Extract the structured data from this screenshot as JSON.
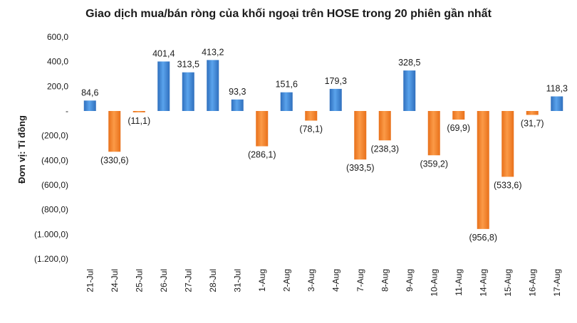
{
  "chart_data": {
    "type": "bar",
    "title": "Giao dịch mua/bán ròng của khối ngoại trên HOSE trong 20 phiên gần nhất",
    "ylabel": "Đơn vị: Tỉ đồng",
    "xlabel": "",
    "categories": [
      "21-Jul",
      "24-Jul",
      "25-Jul",
      "26-Jul",
      "27-Jul",
      "28-Jul",
      "31-Jul",
      "1-Aug",
      "2-Aug",
      "3-Aug",
      "4-Aug",
      "7-Aug",
      "8-Aug",
      "9-Aug",
      "10-Aug",
      "11-Aug",
      "14-Aug",
      "15-Aug",
      "16-Aug",
      "17-Aug"
    ],
    "values": [
      84.6,
      -330.6,
      -11.1,
      401.4,
      313.5,
      413.2,
      93.3,
      -286.1,
      151.6,
      -78.1,
      179.3,
      -393.5,
      -238.3,
      328.5,
      -359.2,
      -69.9,
      -956.8,
      -533.6,
      -31.7,
      118.3
    ],
    "data_labels": [
      "84,6",
      "(330,6)",
      "(11,1)",
      "401,4",
      "313,5",
      "413,2",
      "93,3",
      "(286,1)",
      "151,6",
      "(78,1)",
      "179,3",
      "(393,5)",
      "(238,3)",
      "328,5",
      "(359,2)",
      "(69,9)",
      "(956,8)",
      "(533,6)",
      "(31,7)",
      "118,3"
    ],
    "yticks": [
      600,
      400,
      200,
      0,
      -200,
      -400,
      -600,
      -800,
      -1000,
      -1200
    ],
    "ytick_labels": [
      "600,0",
      "400,0",
      "200,0",
      "-",
      "(200,0)",
      "(400,0)",
      "(600,0)",
      "(800,0)",
      "(1.000,0)",
      "(1.200,0)"
    ],
    "ylim": [
      -1200,
      600
    ],
    "grid": false,
    "legend": "none",
    "colors": {
      "positive": "#3d85d6",
      "negative": "#f4842a"
    }
  }
}
